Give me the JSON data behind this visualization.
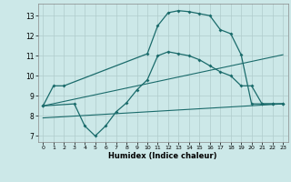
{
  "background_color": "#cce8e8",
  "grid_color": "#b0cccc",
  "line_color": "#1a6b6b",
  "xlabel": "Humidex (Indice chaleur)",
  "xlim": [
    -0.5,
    23.5
  ],
  "ylim": [
    6.7,
    13.6
  ],
  "yticks": [
    7,
    8,
    9,
    10,
    11,
    12,
    13
  ],
  "xticks": [
    0,
    1,
    2,
    3,
    4,
    5,
    6,
    7,
    8,
    9,
    10,
    11,
    12,
    13,
    14,
    15,
    16,
    17,
    18,
    19,
    20,
    21,
    22,
    23
  ],
  "line1_x": [
    0,
    1,
    2,
    10,
    11,
    12,
    13,
    14,
    15,
    16,
    17,
    18,
    19,
    20,
    21,
    22,
    23
  ],
  "line1_y": [
    8.5,
    9.5,
    9.5,
    11.1,
    12.5,
    13.15,
    13.25,
    13.2,
    13.1,
    13.0,
    12.3,
    12.1,
    11.05,
    8.6,
    8.6,
    8.6,
    8.6
  ],
  "line2_x": [
    0,
    3,
    4,
    5,
    6,
    7,
    8,
    9,
    10,
    11,
    12,
    13,
    14,
    15,
    16,
    17,
    18,
    19,
    20,
    21,
    22,
    23
  ],
  "line2_y": [
    8.5,
    8.6,
    7.5,
    7.0,
    7.5,
    8.2,
    8.65,
    9.3,
    9.8,
    11.0,
    11.2,
    11.1,
    11.0,
    10.8,
    10.5,
    10.2,
    10.0,
    9.5,
    9.5,
    8.6,
    8.6,
    8.6
  ],
  "line3_x": [
    0,
    23
  ],
  "line3_y": [
    8.5,
    11.05
  ],
  "line4_x": [
    0,
    23
  ],
  "line4_y": [
    7.9,
    8.6
  ],
  "figsize": [
    3.2,
    2.0
  ],
  "dpi": 100
}
